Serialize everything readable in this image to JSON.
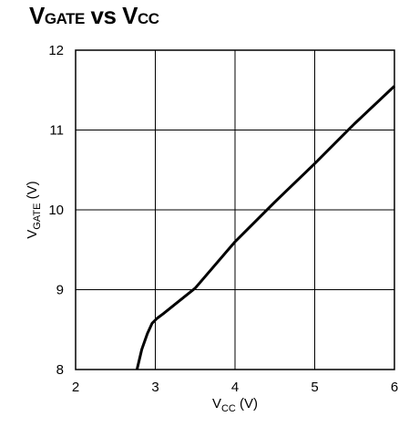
{
  "chart_data": {
    "type": "line",
    "title": {
      "main": "V",
      "sub": "GATE",
      "mid": " vs V",
      "sub2": "CC"
    },
    "xlabel": {
      "main": "V",
      "sub": "CC",
      "unit": " (V)"
    },
    "ylabel": {
      "main": "V",
      "sub": "GATE",
      "unit": " (V)"
    },
    "xlim": [
      2,
      6
    ],
    "ylim": [
      8,
      12
    ],
    "x_ticks": [
      "2",
      "3",
      "4",
      "5",
      "6"
    ],
    "y_ticks": [
      "8",
      "9",
      "10",
      "11",
      "12"
    ],
    "grid": true,
    "series": [
      {
        "x": [
          2.77,
          2.83,
          2.9,
          2.96,
          3.02,
          3.1,
          3.25,
          3.5,
          4.0,
          4.5,
          5.0,
          5.5,
          6.0
        ],
        "y": [
          8.0,
          8.25,
          8.45,
          8.58,
          8.64,
          8.7,
          8.82,
          9.02,
          9.6,
          10.1,
          10.58,
          11.08,
          11.55
        ]
      }
    ]
  }
}
